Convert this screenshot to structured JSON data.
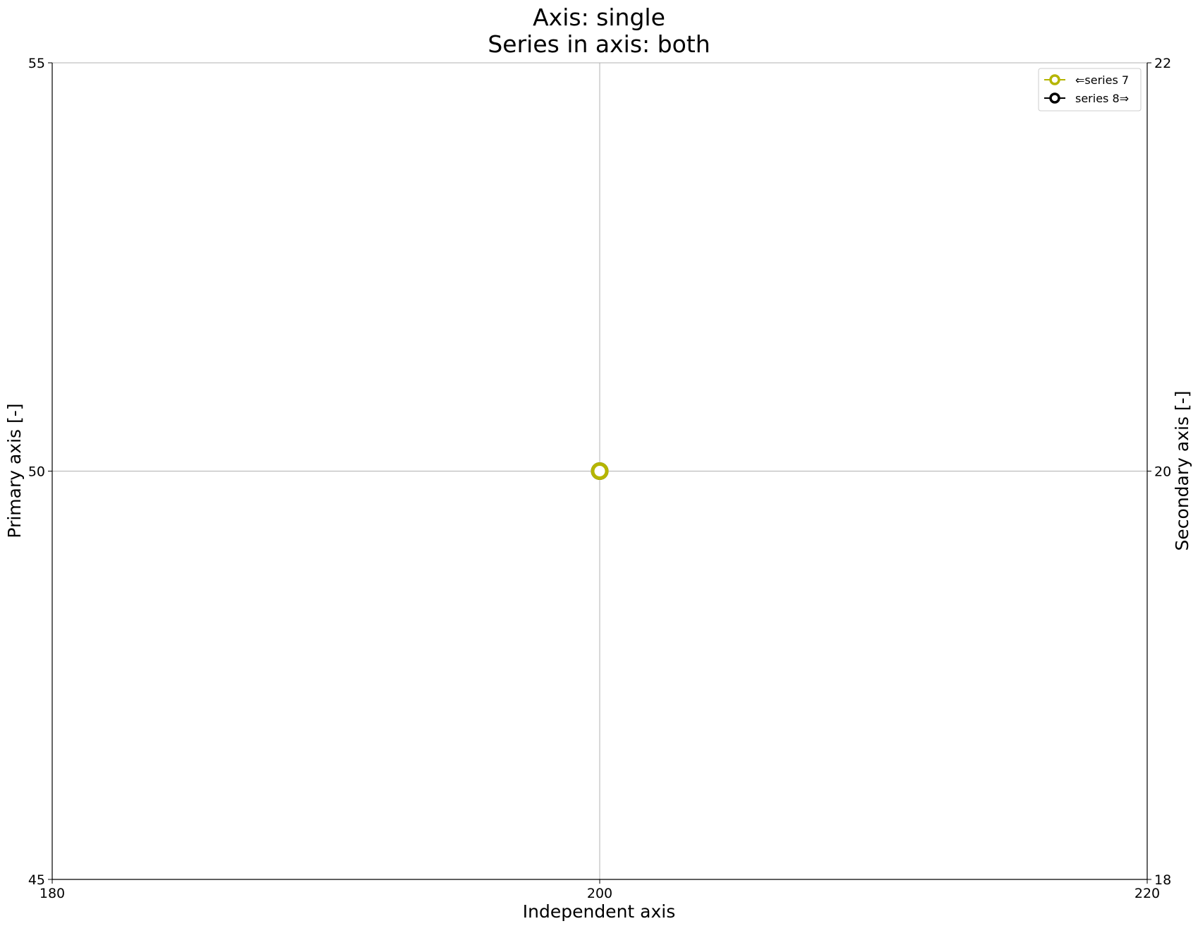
{
  "chart_data": {
    "type": "line",
    "title_line1": "Axis: single",
    "title_line2": "Series in axis: both",
    "xlabel": "Independent axis",
    "ylabel": "Primary axis [-]",
    "y2label": "Secondary axis [-]",
    "xlim": [
      180,
      220
    ],
    "ylim": [
      45,
      55
    ],
    "y2lim": [
      18,
      22
    ],
    "x_ticks": [
      "180",
      "200",
      "220"
    ],
    "y_ticks": [
      "45",
      "50",
      "55"
    ],
    "y2_ticks": [
      "18",
      "20",
      "22"
    ],
    "grid": true,
    "legend_position": "top-right",
    "series": [
      {
        "name": "⇐series 7",
        "axis": "primary",
        "color": "#b5b500",
        "marker": "hollow-circle",
        "x": [
          200
        ],
        "y": [
          50
        ]
      },
      {
        "name": "series 8⇒",
        "axis": "secondary",
        "color": "#000000",
        "marker": "hollow-circle",
        "x": [
          200
        ],
        "y": [
          20
        ]
      }
    ]
  }
}
